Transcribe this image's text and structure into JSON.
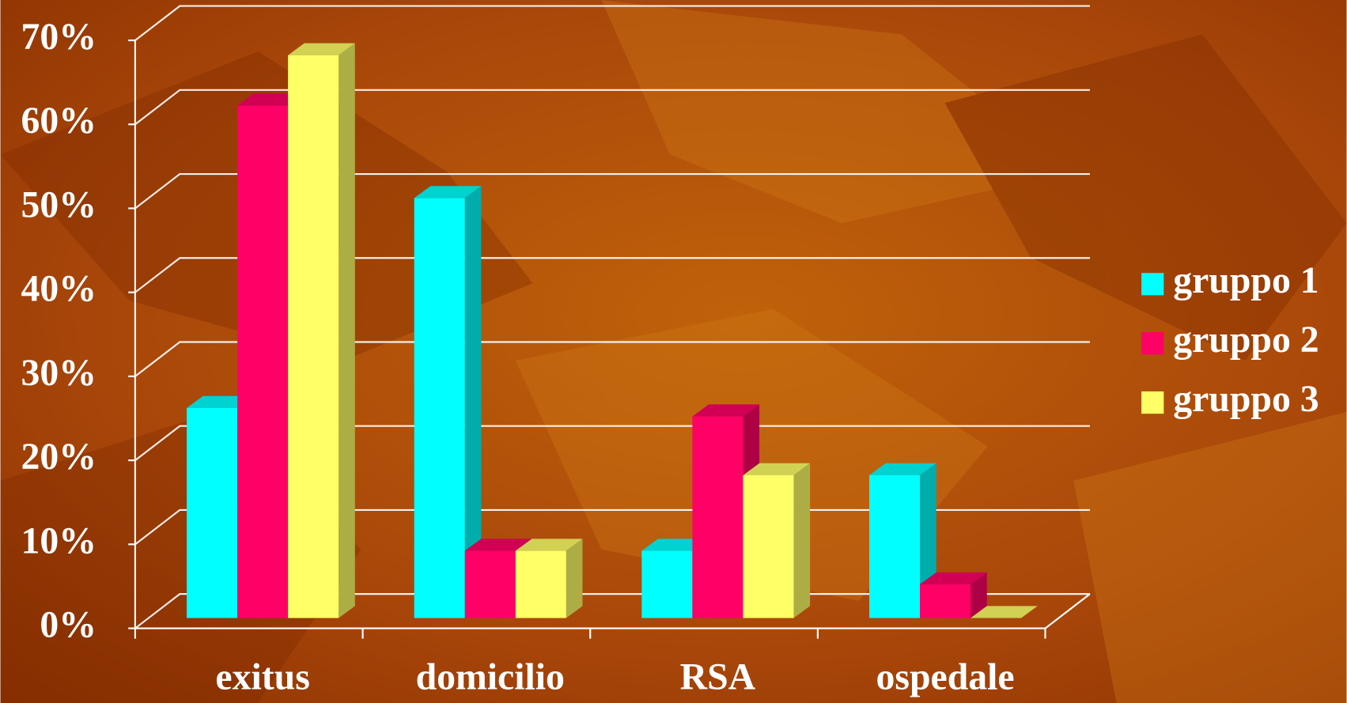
{
  "chart_data": {
    "type": "bar3d",
    "categories": [
      "exitus",
      "domicilio",
      "RSA",
      "ospedale"
    ],
    "series": [
      {
        "name": "gruppo 1",
        "color": "#00ffff",
        "values": [
          25,
          50,
          8,
          17
        ]
      },
      {
        "name": "gruppo 2",
        "color": "#ff0066",
        "values": [
          61,
          8,
          24,
          4
        ]
      },
      {
        "name": "gruppo 3",
        "color": "#ffff66",
        "values": [
          67,
          8,
          17,
          0
        ]
      }
    ],
    "ylim": [
      0,
      70
    ],
    "yticks": [
      {
        "value": 0,
        "label": "0%"
      },
      {
        "value": 10,
        "label": "10%"
      },
      {
        "value": 20,
        "label": "20%"
      },
      {
        "value": 30,
        "label": "30%"
      },
      {
        "value": 40,
        "label": "40%"
      },
      {
        "value": 50,
        "label": "50%"
      },
      {
        "value": 60,
        "label": "60%"
      },
      {
        "value": 70,
        "label": "70%"
      }
    ],
    "grid": true,
    "legend": "right"
  }
}
